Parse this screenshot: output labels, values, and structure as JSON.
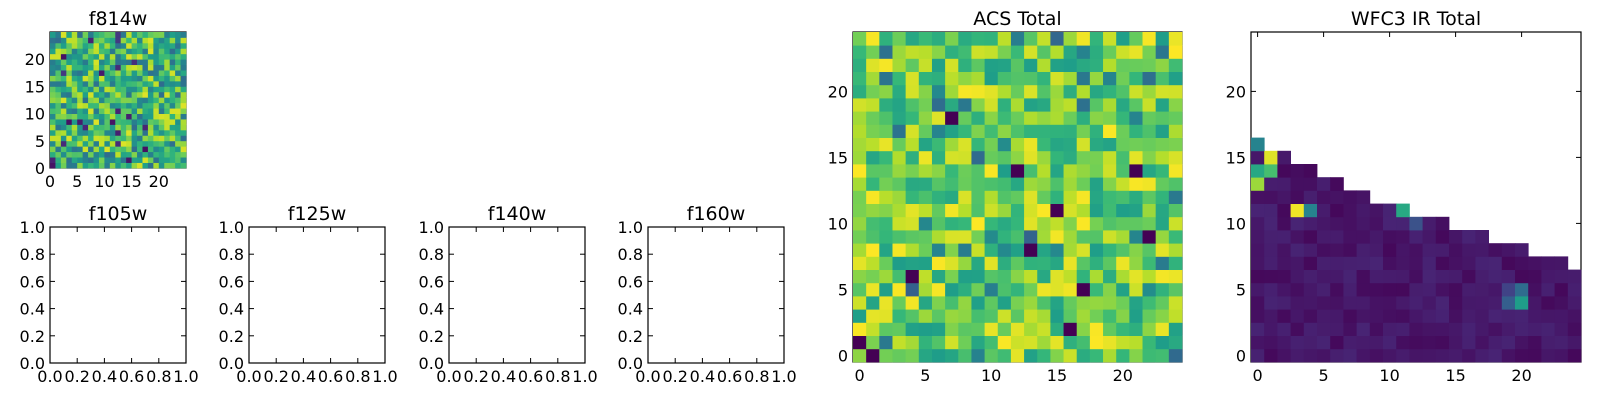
{
  "figure": {
    "background": "#ffffff"
  },
  "chart_data": [
    {
      "type": "heatmap",
      "title": "f814w",
      "colormap": "viridis",
      "grid": false,
      "xlim": [
        0,
        25
      ],
      "ylim": [
        0,
        25
      ],
      "xticks": [
        "0",
        "5",
        "10",
        "15",
        "20"
      ],
      "yticks": [
        "0",
        "5",
        "10",
        "15",
        "20"
      ],
      "values": "pseudo-random values in the range 0.3 to 0.95 with a few dark pixels near 0.0, densely covering the full 25x25 grid"
    },
    {
      "type": "heatmap",
      "title": "f105w",
      "grid": false,
      "xlim": [
        0,
        1
      ],
      "ylim": [
        0,
        1
      ],
      "xticks": [
        "0.0",
        "0.2",
        "0.4",
        "0.6",
        "0.8",
        "1.0"
      ],
      "yticks": [
        "0.0",
        "0.2",
        "0.4",
        "0.6",
        "0.8",
        "1.0"
      ],
      "values": []
    },
    {
      "type": "heatmap",
      "title": "f125w",
      "grid": false,
      "xlim": [
        0,
        1
      ],
      "ylim": [
        0,
        1
      ],
      "xticks": [
        "0.0",
        "0.2",
        "0.4",
        "0.6",
        "0.8",
        "1.0"
      ],
      "yticks": [
        "0.0",
        "0.2",
        "0.4",
        "0.6",
        "0.8",
        "1.0"
      ],
      "values": []
    },
    {
      "type": "heatmap",
      "title": "f140w",
      "grid": false,
      "xlim": [
        0,
        1
      ],
      "ylim": [
        0,
        1
      ],
      "xticks": [
        "0.0",
        "0.2",
        "0.4",
        "0.6",
        "0.8",
        "1.0"
      ],
      "yticks": [
        "0.0",
        "0.2",
        "0.4",
        "0.6",
        "0.8",
        "1.0"
      ],
      "values": []
    },
    {
      "type": "heatmap",
      "title": "f160w",
      "grid": false,
      "xlim": [
        0,
        1
      ],
      "ylim": [
        0,
        1
      ],
      "xticks": [
        "0.0",
        "0.2",
        "0.4",
        "0.6",
        "0.8",
        "1.0"
      ],
      "yticks": [
        "0.0",
        "0.2",
        "0.4",
        "0.6",
        "0.8",
        "1.0"
      ],
      "values": []
    },
    {
      "type": "heatmap",
      "title": "ACS Total",
      "colormap": "viridis",
      "grid": false,
      "xlim": [
        -0.5,
        24.5
      ],
      "ylim": [
        -0.5,
        24.5
      ],
      "xticks": [
        "0",
        "5",
        "10",
        "15",
        "20"
      ],
      "yticks": [
        "0",
        "5",
        "10",
        "15",
        "20"
      ],
      "values": "pseudo-random values mostly 0.5 to 1.0 across the full 25x25 grid, scattered dark cells near 0.0 at (1,0),(17,5),(15,11),(4,6),(12,14),(13,8),(22,9),(16,2),(7,18)"
    },
    {
      "type": "heatmap",
      "title": "WFC3 IR Total",
      "colormap": "viridis",
      "grid": false,
      "xlim": [
        -0.5,
        24.5
      ],
      "ylim": [
        -0.5,
        24.5
      ],
      "xticks": [
        "0",
        "5",
        "10",
        "15",
        "20"
      ],
      "yticks": [
        "0",
        "5",
        "10",
        "15",
        "20"
      ],
      "values": "lower triangle only (white above a diagonal from row 16 at x=0 down to row 6 at x=24); mostly dark purple 0.02 to 0.1; bright cells near (1,15)=0.95,(1,14)=0.7,(0,13)=0.85,(3,11)=0.98,(4,11)=0.45,(11,11)=0.6,(20,4)=0.55,(19,4)=0.3,(0,16)=0.45"
    }
  ]
}
